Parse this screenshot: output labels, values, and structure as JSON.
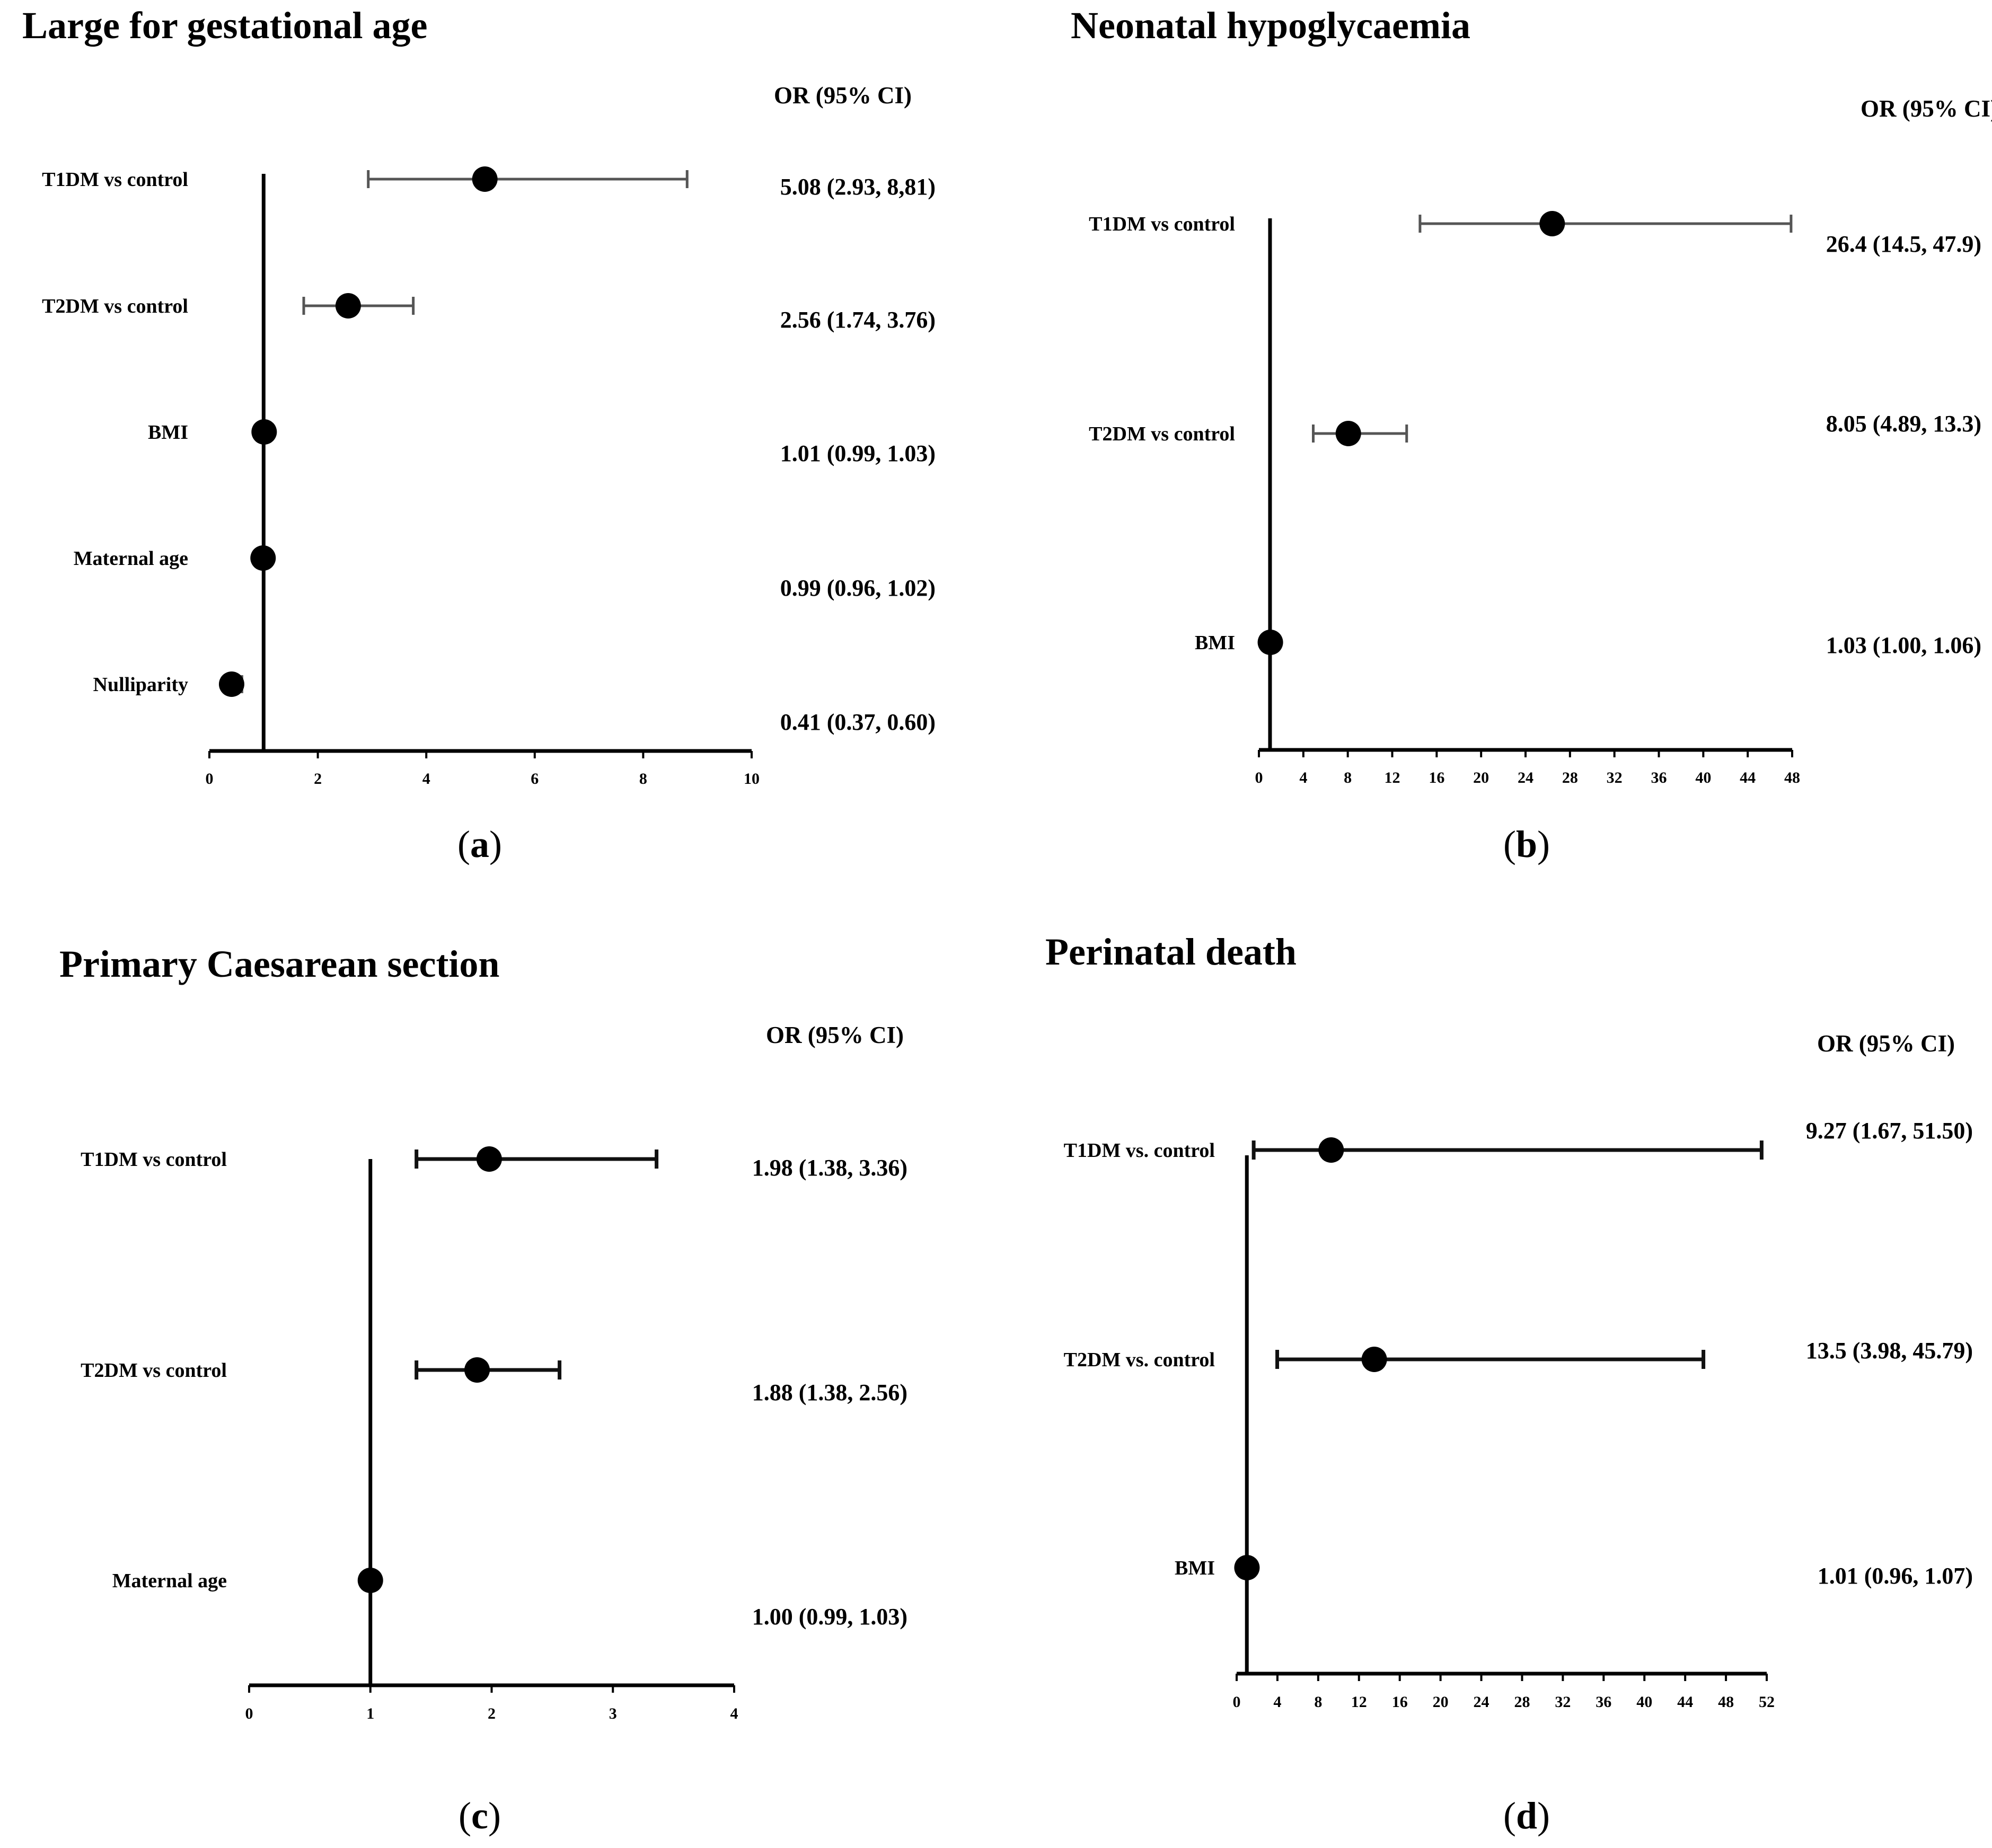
{
  "chart_data": [
    {
      "type": "forest",
      "panel": "a",
      "title": "Large for gestational age",
      "or_header": "OR (95% CI)",
      "caption_open": "(",
      "caption_letter": "a",
      "caption_close": ")",
      "xlim": [
        0,
        10
      ],
      "ticks": [
        0,
        2,
        4,
        6,
        8,
        10
      ],
      "reference": 1,
      "ci_color": "#555555",
      "rows": [
        {
          "label": "T1DM vs control",
          "or": 5.08,
          "lo": 2.93,
          "hi": 8.81,
          "text": "5.08 (2.93, 8,81)"
        },
        {
          "label": "T2DM vs control",
          "or": 2.56,
          "lo": 1.74,
          "hi": 3.76,
          "text": "2.56 (1.74, 3.76)"
        },
        {
          "label": "BMI",
          "or": 1.01,
          "lo": 0.99,
          "hi": 1.03,
          "text": "1.01 (0.99, 1.03)"
        },
        {
          "label": "Maternal age",
          "or": 0.99,
          "lo": 0.96,
          "hi": 1.02,
          "text": "0.99 (0.96, 1.02)"
        },
        {
          "label": "Nulliparity",
          "or": 0.41,
          "lo": 0.37,
          "hi": 0.6,
          "text": "0.41 (0.37, 0.60)"
        }
      ]
    },
    {
      "type": "forest",
      "panel": "b",
      "title": "Neonatal hypoglycaemia",
      "or_header": "OR (95% CI)",
      "caption_open": "(",
      "caption_letter": "b",
      "caption_close": ")",
      "xlim": [
        0,
        48
      ],
      "ticks": [
        0,
        4,
        8,
        12,
        16,
        20,
        24,
        28,
        32,
        36,
        40,
        44,
        48
      ],
      "reference": 1,
      "ci_color": "#555555",
      "rows": [
        {
          "label": "T1DM vs control",
          "or": 26.4,
          "lo": 14.5,
          "hi": 47.9,
          "text": "26.4 (14.5, 47.9)"
        },
        {
          "label": "T2DM vs control",
          "or": 8.05,
          "lo": 4.89,
          "hi": 13.3,
          "text": "8.05 (4.89, 13.3)"
        },
        {
          "label": "BMI",
          "or": 1.03,
          "lo": 1.0,
          "hi": 1.06,
          "text": "1.03 (1.00, 1.06)"
        }
      ]
    },
    {
      "type": "forest",
      "panel": "c",
      "title": "Primary Caesarean section",
      "or_header": "OR (95% CI)",
      "caption_open": "(",
      "caption_letter": "c",
      "caption_close": ")",
      "xlim": [
        0,
        4
      ],
      "ticks": [
        0,
        1,
        2,
        3,
        4
      ],
      "reference": 1,
      "ci_color": "#111111",
      "rows": [
        {
          "label": "T1DM vs control",
          "or": 1.98,
          "lo": 1.38,
          "hi": 3.36,
          "text": "1.98 (1.38, 3.36)"
        },
        {
          "label": "T2DM vs control",
          "or": 1.88,
          "lo": 1.38,
          "hi": 2.56,
          "text": "1.88 (1.38, 2.56)"
        },
        {
          "label": "Maternal age",
          "or": 1.0,
          "lo": 0.99,
          "hi": 1.03,
          "text": "1.00 (0.99, 1.03)"
        }
      ]
    },
    {
      "type": "forest",
      "panel": "d",
      "title": "Perinatal death",
      "or_header": "OR (95% CI)",
      "caption_open": "(",
      "caption_letter": "d",
      "caption_close": ")",
      "xlim": [
        0,
        52
      ],
      "ticks": [
        0,
        4,
        8,
        12,
        16,
        20,
        24,
        28,
        32,
        36,
        40,
        44,
        48,
        52
      ],
      "reference": 1,
      "ci_color": "#111111",
      "rows": [
        {
          "label": "T1DM vs. control",
          "or": 9.27,
          "lo": 1.67,
          "hi": 51.5,
          "text": "9.27 (1.67, 51.50)"
        },
        {
          "label": "T2DM vs. control",
          "or": 13.5,
          "lo": 3.98,
          "hi": 45.79,
          "text": "13.5 (3.98, 45.79)"
        },
        {
          "label": "BMI",
          "or": 1.01,
          "lo": 0.96,
          "hi": 1.07,
          "text": "1.01 (0.96, 1.07)"
        }
      ]
    }
  ]
}
